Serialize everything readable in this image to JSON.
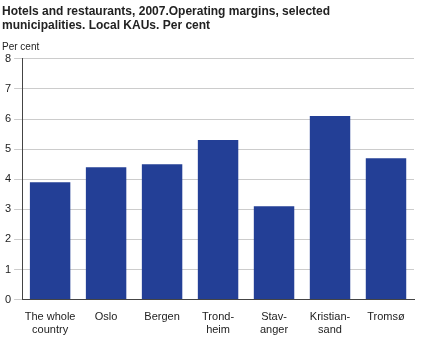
{
  "chart_data": {
    "type": "bar",
    "title": [
      "Hotels and restaurants, 2007.Operating margins, selected",
      "municipalities. Local KAUs. Per cent"
    ],
    "y_label": "Per cent",
    "categories": [
      "The whole\ncountry",
      "Oslo",
      "Bergen",
      "Trond-\nheim",
      "Stav-\nanger",
      "Kristian-\nsand",
      "Tromsø"
    ],
    "values": [
      3.9,
      4.4,
      4.5,
      5.3,
      3.1,
      6.1,
      4.7
    ],
    "color": "#233f96",
    "ylim": [
      0,
      8
    ],
    "yticks": [
      0,
      1,
      2,
      3,
      4,
      5,
      6,
      7,
      8
    ],
    "grid": true
  }
}
